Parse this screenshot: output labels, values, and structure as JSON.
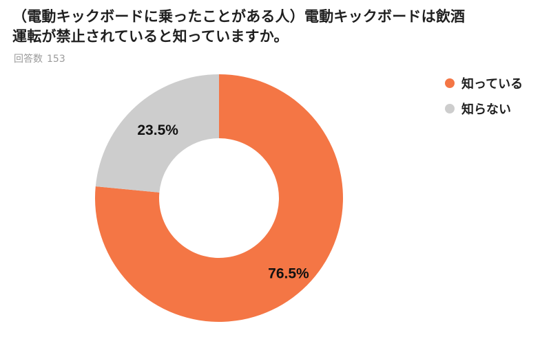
{
  "title_lines": [
    "（電動キックボードに乗ったことがある人）電動キックボードは飲酒",
    "運転が禁止されていると知っていますか。"
  ],
  "respondents": {
    "label": "回答数",
    "count": "153"
  },
  "colors": {
    "known": "#F47645",
    "unknown": "#CDCDCD"
  },
  "chart_data": {
    "type": "pie",
    "donut": true,
    "title": "（電動キックボードに乗ったことがある人）電動キックボードは飲酒運転が禁止されていると知っていますか。",
    "labels": [
      "知っている",
      "知らない"
    ],
    "values": [
      76.5,
      23.5
    ],
    "value_labels": [
      "76.5%",
      "23.5%"
    ],
    "colors": [
      "#F47645",
      "#CDCDCD"
    ],
    "legend_position": "top-right"
  }
}
